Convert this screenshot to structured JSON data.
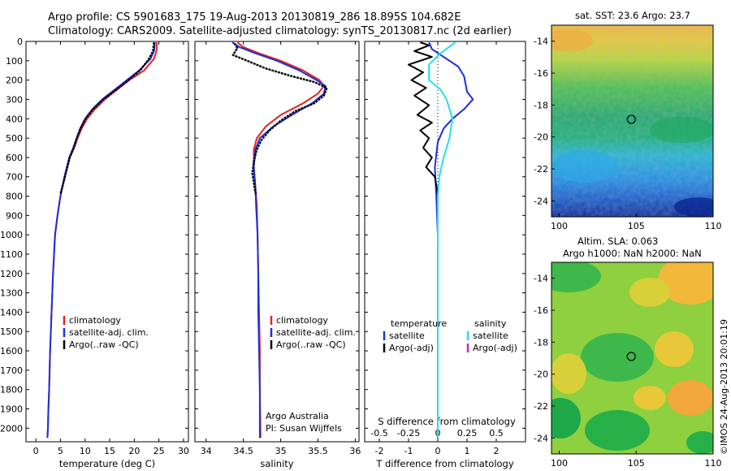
{
  "title_line1": "Argo profile: CS 5901683_175 19-Aug-2013 20130819_286 18.895S 104.682E",
  "title_line2": "Climatology: CARS2009. Satellite-adjusted climatology: synTS_20130817.nc (2d earlier)",
  "side_label": "©IMOS 24-Aug-2013 20:01:19",
  "colors": {
    "climatology": "#e8201c",
    "satellite": "#1e2ee0",
    "argo": "#000000",
    "sal_satellite": "#22e0e8",
    "sal_argo": "#d020c8",
    "map_marker": "#000000"
  },
  "chart_data": [
    {
      "type": "line",
      "panel": "temperature",
      "xlabel": "temperature (deg C)",
      "ylabel": "",
      "xlim": [
        -2,
        31
      ],
      "ylim": [
        2070,
        0
      ],
      "x_ticks": [
        "0",
        "5",
        "10",
        "15",
        "20",
        "25",
        "30"
      ],
      "x_tick_values": [
        0,
        5,
        10,
        15,
        20,
        25,
        30
      ],
      "y_ticks": [
        "0",
        "100",
        "200",
        "300",
        "400",
        "500",
        "600",
        "700",
        "800",
        "900",
        "1000",
        "1100",
        "1200",
        "1300",
        "1400",
        "1500",
        "1600",
        "1700",
        "1800",
        "1900",
        "2000"
      ],
      "y_tick_values": [
        0,
        100,
        200,
        300,
        400,
        500,
        600,
        700,
        800,
        900,
        1000,
        1100,
        1200,
        1300,
        1400,
        1500,
        1600,
        1700,
        1800,
        1900,
        2000
      ],
      "legend": [
        "climatology",
        "satellite-adj. clim.",
        "Argo(..raw -QC)"
      ],
      "series": [
        {
          "name": "climatology",
          "color_key": "climatology",
          "x": [
            24.6,
            24.5,
            24.0,
            22.0,
            19.0,
            16.5,
            14.0,
            12.0,
            10.4,
            9.3,
            8.5,
            7.8,
            6.9,
            5.9,
            5.0,
            4.4,
            3.9,
            3.5,
            3.2,
            2.9,
            2.7,
            2.55,
            2.45,
            2.35
          ],
          "y": [
            5,
            50,
            90,
            150,
            200,
            250,
            300,
            350,
            400,
            450,
            500,
            550,
            600,
            700,
            800,
            900,
            1000,
            1200,
            1400,
            1600,
            1800,
            1900,
            2000,
            2050
          ]
        },
        {
          "name": "satellite-adj. clim.",
          "color_key": "satellite",
          "x": [
            24.2,
            24.0,
            23.3,
            21.0,
            18.5,
            16.0,
            13.5,
            11.5,
            10.0,
            9.0,
            8.3,
            7.6,
            6.8,
            5.8,
            5.0,
            4.4,
            3.9,
            3.5,
            3.2,
            2.9,
            2.7,
            2.55,
            2.45,
            2.35
          ],
          "y": [
            5,
            50,
            90,
            150,
            200,
            250,
            300,
            350,
            400,
            450,
            500,
            550,
            600,
            700,
            800,
            900,
            1000,
            1200,
            1400,
            1600,
            1800,
            1900,
            2000,
            2050
          ]
        },
        {
          "name": "Argo(..raw -QC)",
          "color_key": "argo",
          "x": [
            24.0,
            23.8,
            23.0,
            21.2,
            18.8,
            16.3,
            13.7,
            11.6,
            10.1,
            9.1,
            8.3,
            7.7,
            6.9,
            5.9,
            5.0
          ],
          "y": [
            5,
            50,
            90,
            150,
            200,
            250,
            300,
            350,
            400,
            450,
            500,
            550,
            600,
            700,
            790
          ]
        }
      ]
    },
    {
      "type": "line",
      "panel": "salinity",
      "xlabel": "salinity",
      "ylabel": "",
      "xlim": [
        33.85,
        36.05
      ],
      "ylim": [
        2070,
        0
      ],
      "x_ticks": [
        "34",
        "34.5",
        "35",
        "35.5",
        "36"
      ],
      "x_tick_values": [
        34,
        34.5,
        35,
        35.5,
        36
      ],
      "legend": [
        "climatology",
        "satellite-adj. clim.",
        "Argo(..raw -QC)"
      ],
      "annotation": [
        "Argo Australia",
        "PI: Susan Wijffels"
      ],
      "series": [
        {
          "name": "climatology",
          "color_key": "climatology",
          "x": [
            34.42,
            34.5,
            34.7,
            35.0,
            35.3,
            35.52,
            35.58,
            35.5,
            35.3,
            35.0,
            34.8,
            34.68,
            34.64,
            34.64,
            34.66,
            34.68,
            34.69,
            34.7,
            34.71,
            34.72,
            34.72,
            34.73
          ],
          "y": [
            5,
            30,
            60,
            100,
            150,
            200,
            230,
            270,
            320,
            380,
            440,
            500,
            560,
            650,
            750,
            850,
            1000,
            1200,
            1400,
            1600,
            1800,
            2050
          ]
        },
        {
          "name": "satellite-adj. clim.",
          "color_key": "satellite",
          "x": [
            34.35,
            34.45,
            34.65,
            34.95,
            35.25,
            35.48,
            35.6,
            35.58,
            35.42,
            35.15,
            34.9,
            34.72,
            34.66,
            34.64,
            34.66,
            34.67,
            34.69,
            34.7,
            34.7,
            34.71,
            34.72,
            34.72
          ],
          "y": [
            5,
            30,
            60,
            100,
            150,
            200,
            230,
            270,
            320,
            380,
            440,
            500,
            560,
            650,
            750,
            850,
            1000,
            1200,
            1400,
            1600,
            1800,
            2050
          ]
        },
        {
          "name": "Argo(..raw -QC)",
          "color_key": "argo",
          "x": [
            34.38,
            34.42,
            34.36,
            34.55,
            34.8,
            35.15,
            35.45,
            35.62,
            35.58,
            35.45,
            35.2,
            35.0,
            34.85,
            34.74,
            34.68,
            34.64,
            34.62,
            34.64,
            34.66,
            34.67
          ],
          "y": [
            10,
            35,
            70,
            100,
            140,
            180,
            210,
            240,
            280,
            320,
            360,
            410,
            460,
            510,
            560,
            620,
            680,
            730,
            780,
            790
          ]
        }
      ]
    },
    {
      "type": "line",
      "panel": "difference",
      "xlabel": "T difference from climatology",
      "xlabel_top": "S difference from climatology",
      "xlim": [
        -2.5,
        3
      ],
      "ylim": [
        2070,
        0
      ],
      "x_ticks": [
        "-2",
        "-1",
        "0",
        "1",
        "2"
      ],
      "x_tick_values": [
        -2,
        -1,
        0,
        1,
        2
      ],
      "x_ticks_top": [
        "-0.5",
        "-0.25",
        "0",
        "0.25",
        "0.5"
      ],
      "x_tick_top_values": [
        -0.5,
        -0.25,
        0,
        0.25,
        0.5
      ],
      "legend_temperature": [
        "temperature",
        "satellite",
        "Argo(-adj)"
      ],
      "legend_salinity": [
        "salinity",
        "satellite",
        "Argo(-adj)"
      ],
      "series": [
        {
          "name": "satellite",
          "color_key": "satellite",
          "x": [
            -0.3,
            -0.2,
            0.2,
            0.7,
            0.9,
            0.95,
            1.0,
            1.2,
            0.9,
            0.5,
            0.2,
            0.0,
            -0.1,
            -0.05,
            0.0,
            0.0,
            0.0,
            0.0
          ],
          "y": [
            5,
            40,
            80,
            130,
            180,
            220,
            260,
            300,
            350,
            400,
            450,
            520,
            650,
            800,
            1000,
            1400,
            1800,
            2050
          ]
        },
        {
          "name": "Argo(-adj)",
          "color_key": "argo",
          "x": [
            -0.6,
            -0.3,
            -0.8,
            -0.2,
            -1.0,
            -0.5,
            -0.9,
            -0.4,
            -0.8,
            -0.3,
            -0.7,
            -0.2,
            -0.6,
            -0.3,
            -0.5,
            -0.2,
            -0.4,
            -0.1,
            0.0
          ],
          "y": [
            5,
            20,
            50,
            80,
            120,
            160,
            200,
            240,
            280,
            330,
            380,
            420,
            460,
            500,
            550,
            600,
            650,
            700,
            790
          ]
        },
        {
          "name": "salinity satellite",
          "color_key": "sal_satellite",
          "x": [
            0.6,
            0.1,
            -0.3,
            -0.3,
            0.1,
            0.3,
            0.5,
            0.4,
            0.2,
            0.05,
            0.0,
            0.0,
            0.0,
            0.0,
            0.0
          ],
          "y": [
            5,
            60,
            120,
            200,
            250,
            300,
            400,
            500,
            600,
            700,
            800,
            1000,
            1400,
            1800,
            2050
          ]
        }
      ]
    },
    {
      "type": "heatmap",
      "panel": "sst_map",
      "title": "sat. SST: 23.6 Argo: 23.7",
      "xlim": [
        99.5,
        110
      ],
      "ylim": [
        -25,
        -13
      ],
      "x_ticks": [
        "100",
        "105",
        "110"
      ],
      "x_tick_values": [
        100,
        105,
        110
      ],
      "y_ticks": [
        "-14",
        "-16",
        "-18",
        "-20",
        "-22",
        "-24"
      ],
      "y_tick_values": [
        -14,
        -16,
        -18,
        -20,
        -22,
        -24
      ],
      "marker": {
        "lon": 104.682,
        "lat": -18.895
      }
    },
    {
      "type": "heatmap",
      "panel": "sla_map",
      "title": "Altim. SLA: 0.063",
      "subtitle": "Argo h1000: NaN h2000: NaN",
      "xlim": [
        99.5,
        110
      ],
      "ylim": [
        -25,
        -13
      ],
      "x_ticks": [
        "100",
        "105",
        "110"
      ],
      "x_tick_values": [
        100,
        105,
        110
      ],
      "y_ticks": [
        "-14",
        "-16",
        "-18",
        "-20",
        "-22",
        "-24"
      ],
      "y_tick_values": [
        -14,
        -16,
        -18,
        -20,
        -22,
        -24
      ],
      "marker": {
        "lon": 104.682,
        "lat": -18.895
      }
    }
  ]
}
